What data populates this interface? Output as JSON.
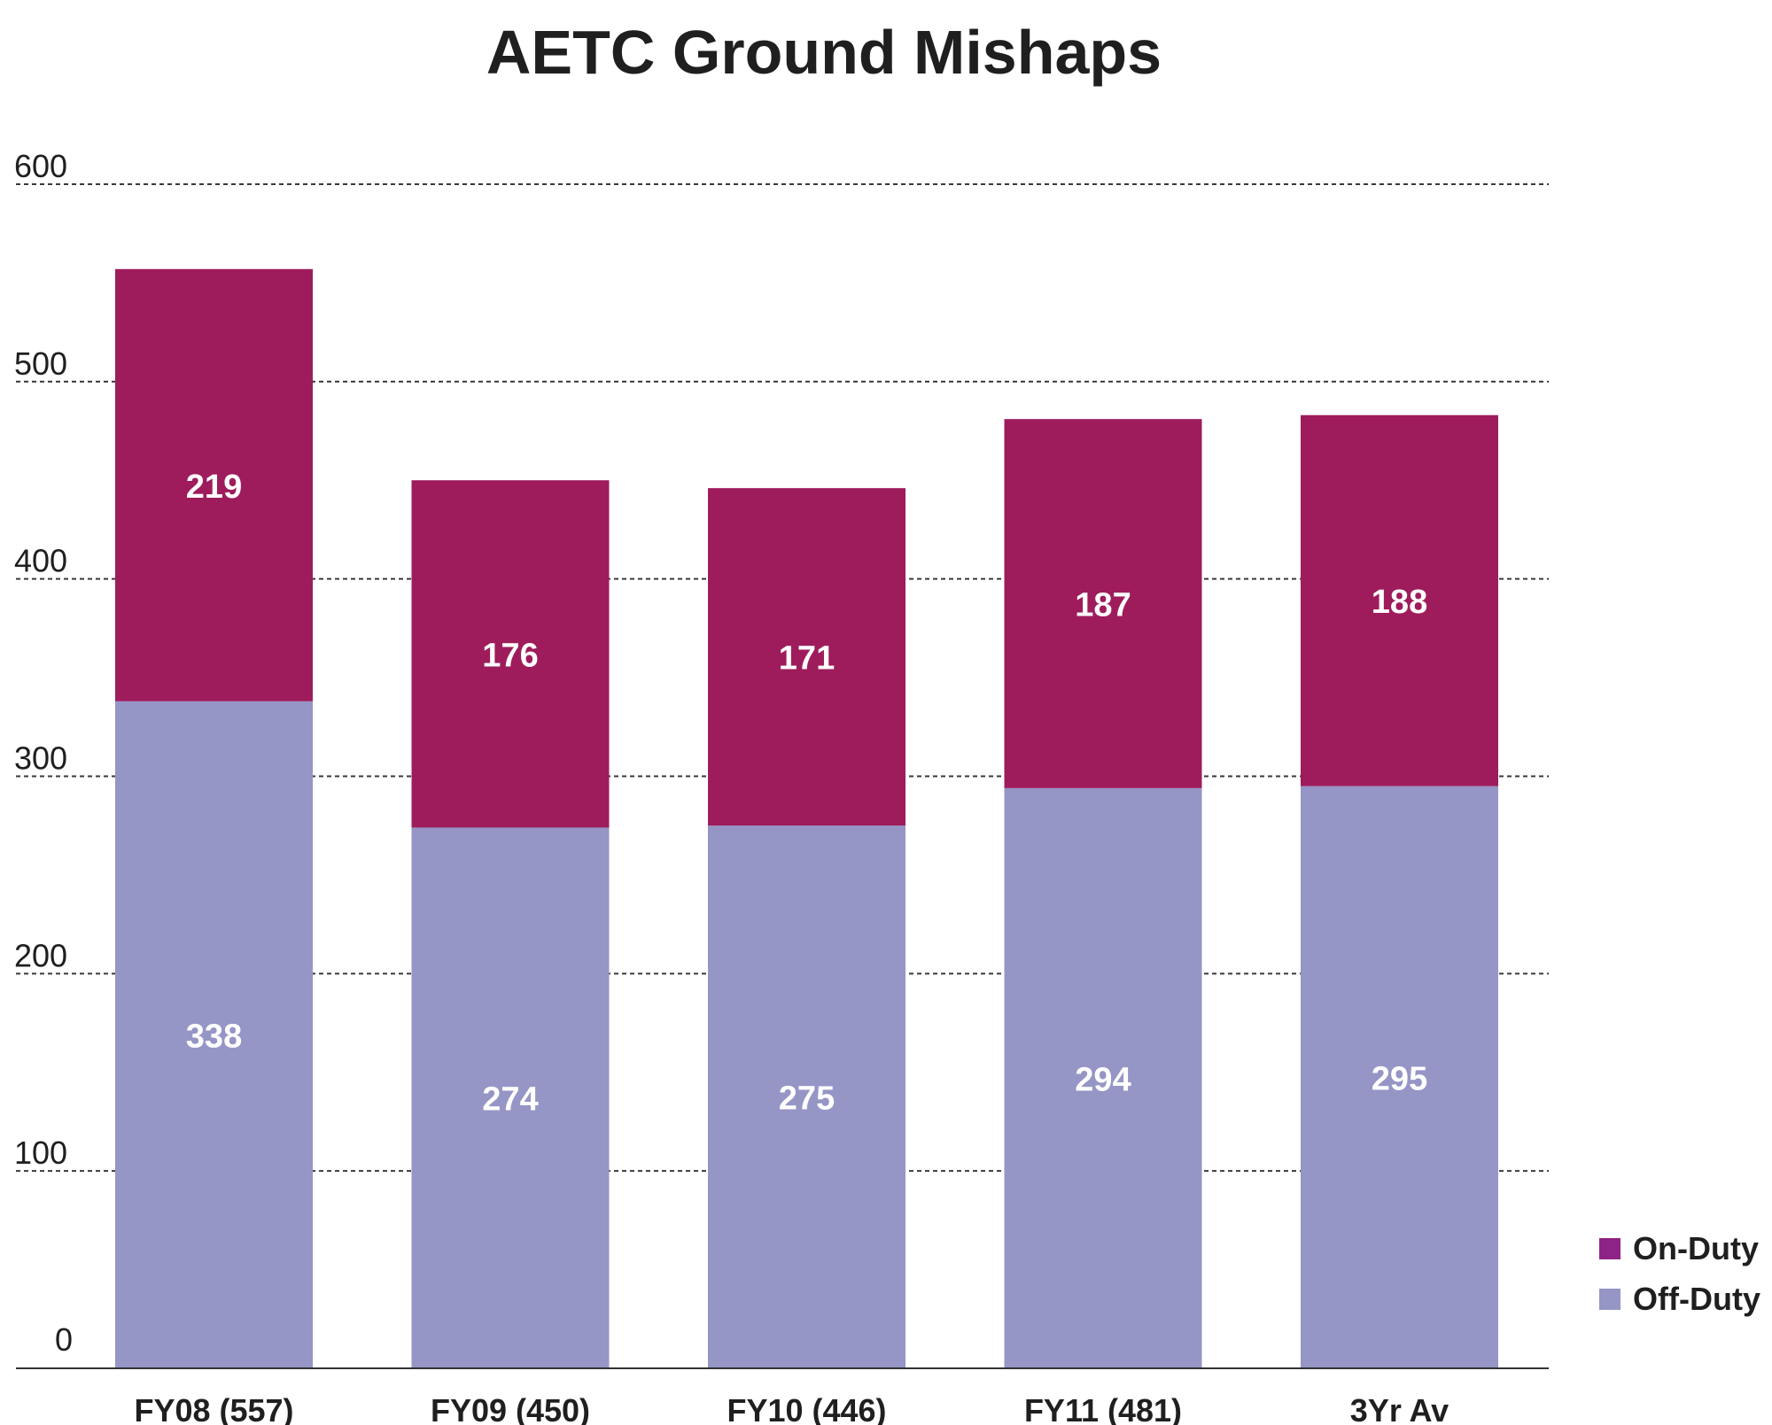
{
  "chart_data": {
    "type": "bar",
    "stacked": true,
    "title": "AETC Ground Mishaps",
    "xlabel": "",
    "ylabel": "",
    "categories": [
      "FY08 (557)",
      "FY09 (450)",
      "FY10 (446)",
      "FY11 (481)",
      "3Yr Av"
    ],
    "series": [
      {
        "name": "Off-Duty",
        "values": [
          338,
          274,
          275,
          294,
          295
        ],
        "color": "#9595c6"
      },
      {
        "name": "On-Duty",
        "values": [
          219,
          176,
          171,
          187,
          188
        ],
        "color": "#9e1c5c"
      }
    ],
    "ylim": [
      0,
      600
    ],
    "yticks": [
      0,
      100,
      200,
      300,
      400,
      500,
      600
    ],
    "grid": "dashed horizontal",
    "legend": {
      "position": "bottom-right",
      "entries": [
        {
          "label": "On-Duty",
          "color": "#8e2386"
        },
        {
          "label": "Off-Duty",
          "color": "#9595c6"
        }
      ]
    }
  }
}
